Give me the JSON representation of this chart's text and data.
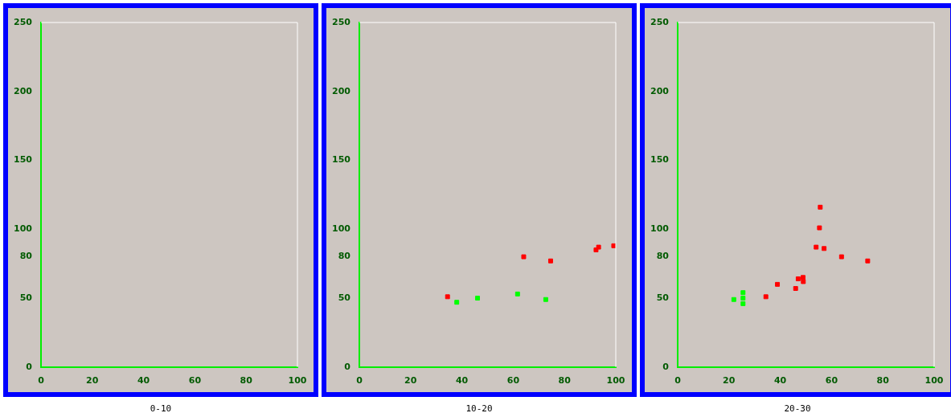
{
  "chart_data": [
    {
      "type": "scatter",
      "title": "0-10",
      "xlim": [
        0,
        100
      ],
      "xticks": [
        0,
        20,
        40,
        60,
        80,
        100
      ],
      "ylim": [
        0,
        250
      ],
      "yticks": [
        0,
        50,
        80,
        100,
        150,
        200,
        250
      ],
      "grid": false,
      "legend": false,
      "marker": "square"
    },
    {
      "type": "scatter",
      "title": "10-20",
      "xlim": [
        0,
        100
      ],
      "xticks": [
        0,
        20,
        40,
        60,
        80,
        100
      ],
      "ylim": [
        0,
        250
      ],
      "yticks": [
        0,
        50,
        80,
        100,
        150,
        200,
        250
      ],
      "grid": false,
      "legend": false,
      "marker": "square",
      "series": [
        {
          "color": "#ff0000",
          "x": [
            34.4,
            64.1,
            74.6,
            92.3,
            93.3,
            99.2
          ],
          "values": [
            51,
            80,
            77,
            85,
            87,
            88
          ]
        },
        {
          "color": "#00ff00",
          "x": [
            38,
            46.1,
            61.7,
            72.7
          ],
          "values": [
            47,
            50,
            53,
            49
          ]
        }
      ]
    },
    {
      "type": "scatter",
      "title": "20-30",
      "xlim": [
        0,
        100
      ],
      "xticks": [
        0,
        20,
        40,
        60,
        80,
        100
      ],
      "ylim": [
        0,
        250
      ],
      "yticks": [
        0,
        50,
        80,
        100,
        150,
        200,
        250
      ],
      "grid": false,
      "legend": false,
      "marker": "square",
      "series": [
        {
          "color": "#ff0000",
          "x": [
            55.6,
            55.3,
            54,
            57.1,
            63.9,
            74.1,
            47,
            48.9,
            49,
            38.9,
            46,
            34.4
          ],
          "values": [
            116,
            101,
            87,
            86,
            80,
            77,
            64,
            65,
            62,
            60,
            57,
            51
          ]
        },
        {
          "color": "#00ff00",
          "x": [
            21.9,
            25.5,
            25.5,
            25.5
          ],
          "values": [
            49,
            54,
            50,
            46
          ]
        }
      ]
    }
  ]
}
